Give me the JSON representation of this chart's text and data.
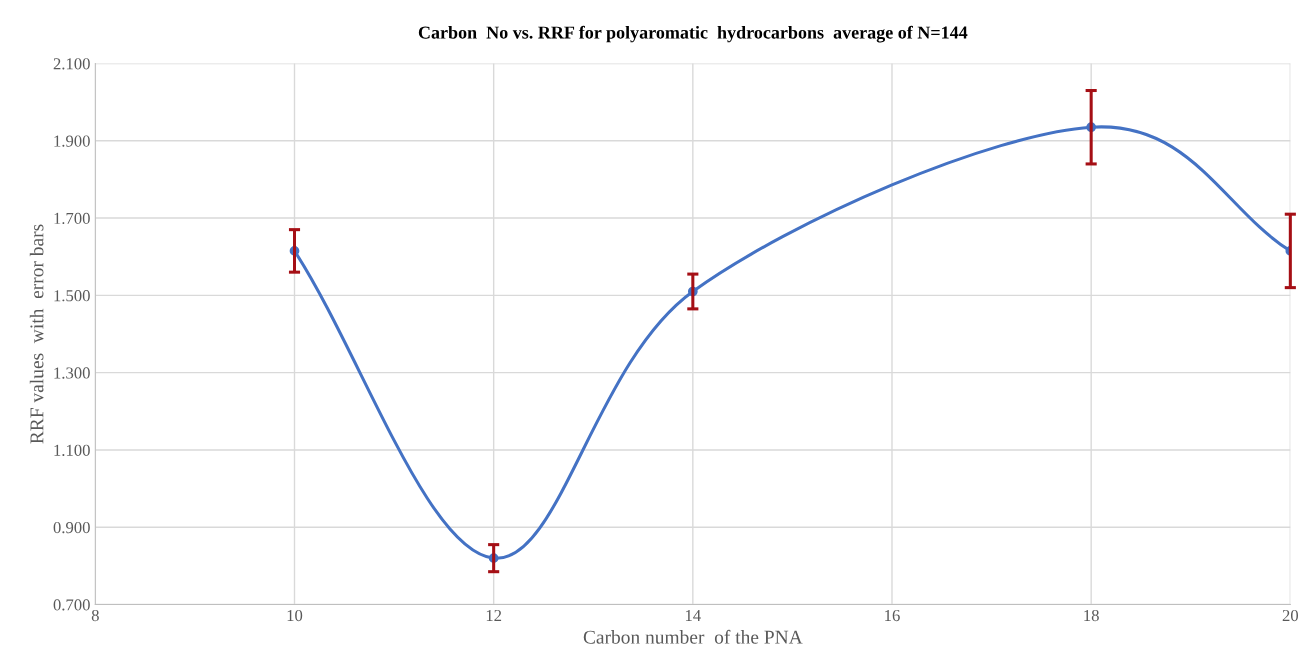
{
  "chart_data": {
    "type": "line",
    "title": "Carbon  No vs. RRF for polyaromatic  hydrocarbons  average of N=144",
    "xlabel": "Carbon number  of the PNA",
    "ylabel": "RRF values  with  error bars",
    "x": [
      10,
      12,
      14,
      18,
      20
    ],
    "series": [
      {
        "color": "#4472c4",
        "values": [
          1.615,
          0.82,
          1.51,
          1.935,
          1.615
        ],
        "errors": [
          0.055,
          0.035,
          0.045,
          0.095,
          0.095
        ]
      }
    ],
    "marker": "circle",
    "line_style": "solid",
    "grid": true,
    "legend": false,
    "xlim": [
      8,
      20
    ],
    "xticks": [
      8,
      10,
      12,
      14,
      16,
      18,
      20
    ],
    "ylim": [
      0.7,
      2.1
    ],
    "yticks": [
      {
        "value": 0.7,
        "label": "0.700"
      },
      {
        "value": 0.9,
        "label": "0.900"
      },
      {
        "value": 1.1,
        "label": "1.100"
      },
      {
        "value": 1.3,
        "label": "1.300"
      },
      {
        "value": 1.5,
        "label": "1.500"
      },
      {
        "value": 1.7,
        "label": "1.700"
      },
      {
        "value": 1.9,
        "label": "1.900"
      },
      {
        "value": 2.1,
        "label": "2.100"
      }
    ]
  }
}
